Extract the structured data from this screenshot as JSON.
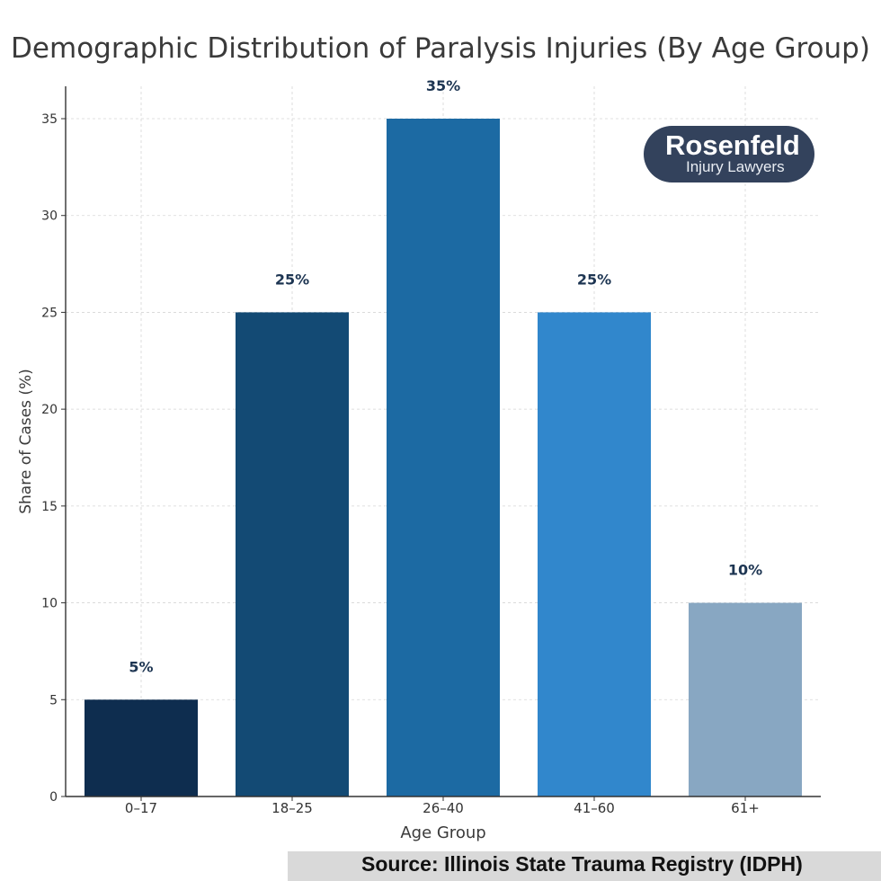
{
  "chart_data": {
    "type": "bar",
    "title": "Demographic Distribution of Paralysis Injuries (By Age Group)",
    "xlabel": "Age Group",
    "ylabel": "Share of Cases (%)",
    "categories": [
      "0–17",
      "18–25",
      "26–40",
      "41–60",
      "61+"
    ],
    "values": [
      5,
      25,
      35,
      25,
      10
    ],
    "data_labels": [
      "5%",
      "25%",
      "35%",
      "25%",
      "10%"
    ],
    "colors": [
      "#0e2d4f",
      "#134a74",
      "#1c6aa3",
      "#3187cc",
      "#88a7c2"
    ],
    "ylim": [
      0,
      36.5
    ],
    "yticks": [
      0,
      5,
      10,
      15,
      20,
      25,
      30,
      35
    ],
    "grid": true,
    "label_color": "#1d3552"
  },
  "logo": {
    "name": "Rosenfeld",
    "tagline": "Injury Lawyers"
  },
  "source": "Source: Illinois State Trauma Registry (IDPH)"
}
